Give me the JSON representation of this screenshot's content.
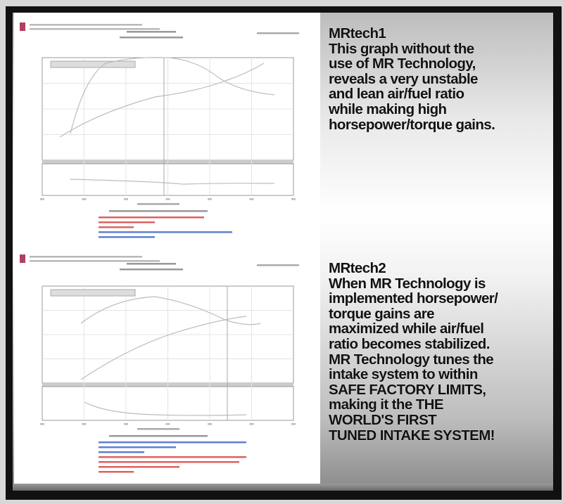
{
  "blocks": [
    {
      "lines": [
        "MRtech1",
        "This graph without the",
        "use of MR Technology,",
        "reveals a very unstable",
        "and lean air/fuel ratio",
        "while making high",
        "horsepower/torque gains."
      ]
    },
    {
      "lines": [
        "MRtech2",
        "When MR Technology is",
        "implemented horsepower/",
        "torque gains are",
        "maximized while air/fuel",
        "ratio becomes stabilized.",
        "MR Technology tunes the",
        "intake system to within",
        "SAFE FACTORY LIMITS,",
        "making it the THE",
        "WORLD'S FIRST",
        "TUNED INTAKE SYSTEM!"
      ]
    }
  ],
  "colors": {
    "text": "#111111",
    "frame": "#111111",
    "footer_red": "#e06060",
    "footer_blue": "#6080d0"
  }
}
